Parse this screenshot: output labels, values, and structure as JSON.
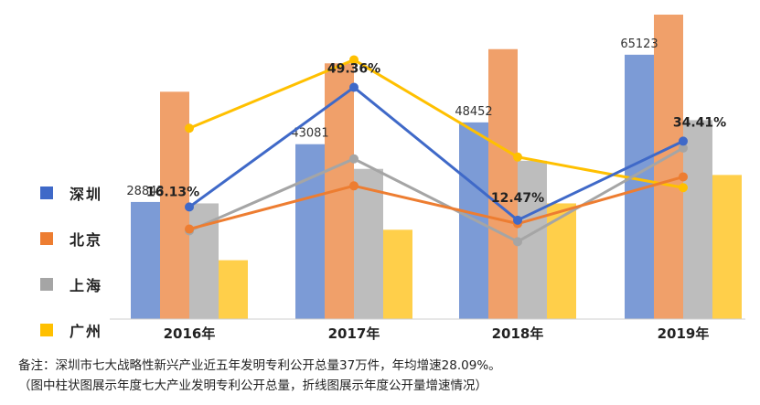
{
  "chart_data": {
    "type": "bar",
    "categories": [
      "2016年",
      "2017年",
      "2018年",
      "2019年"
    ],
    "ylim": [
      0,
      75000
    ],
    "bar_series": [
      {
        "name": "深圳",
        "color": "#7c9bd6",
        "values": [
          28843,
          43081,
          48452,
          65123
        ],
        "labels": [
          "28843",
          "43081",
          "48452",
          "65123"
        ]
      },
      {
        "name": "北京",
        "color": "#f0a06a",
        "values": [
          56000,
          63000,
          66500,
          82000
        ]
      },
      {
        "name": "上海",
        "color": "#bdbdbd",
        "values": [
          28500,
          37000,
          39000,
          49000
        ]
      },
      {
        "name": "广州",
        "color": "#ffcf4a",
        "values": [
          14500,
          22000,
          28500,
          35500
        ]
      }
    ],
    "line_series": [
      {
        "name": "深圳",
        "color": "#3f69c8",
        "values": [
          16.13,
          49.36,
          12.47,
          34.41
        ],
        "labels": [
          "16.13%",
          "49.36%",
          "12.47%",
          "34.41%"
        ]
      },
      {
        "name": "北京",
        "color": "#ed7d31",
        "values": [
          10.0,
          22.0,
          11.5,
          24.5
        ]
      },
      {
        "name": "上海",
        "color": "#a5a5a5",
        "values": [
          9.5,
          29.5,
          6.5,
          32.5
        ]
      },
      {
        "name": "广州",
        "color": "#ffc000",
        "values": [
          38.0,
          57.0,
          30.0,
          21.5
        ]
      }
    ],
    "line_ylim": [
      -15,
      66
    ]
  },
  "legend": [
    {
      "label": "深圳",
      "color": "#3f69c8"
    },
    {
      "label": "北京",
      "color": "#ed7d31"
    },
    {
      "label": "上海",
      "color": "#a5a5a5"
    },
    {
      "label": "广州",
      "color": "#ffc000"
    }
  ],
  "note": {
    "line1": "备注：深圳市七大战略性新兴产业近五年发明专利公开总量37万件，年均增速28.09%。",
    "line2": "（图中柱状图展示年度七大产业发明专利公开总量，折线图展示年度公开量增速情况）"
  }
}
